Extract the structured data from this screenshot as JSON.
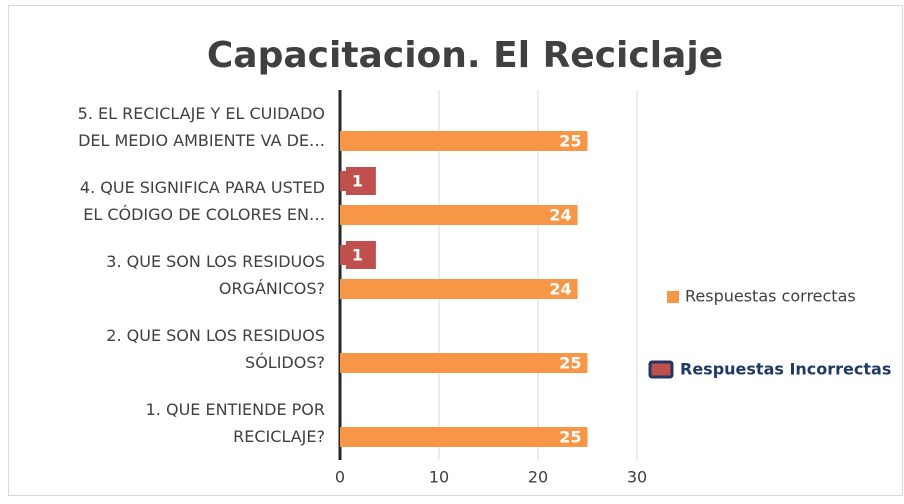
{
  "chart_data": {
    "type": "hbar",
    "title": "Capacitacion. El Reciclaje",
    "categories": [
      "1. QUE ENTIENDE POR\nRECICLAJE?",
      "2. QUE SON LOS RESIDUOS\nSÓLIDOS?",
      "3. QUE SON LOS RESIDUOS\nORGÁNICOS?",
      "4. QUE SIGNIFICA PARA USTED\nEL CÓDIGO DE COLORES EN…",
      "5. EL RECICLAJE Y EL CUIDADO\nDEL MEDIO AMBIENTE VA DE…"
    ],
    "series": [
      {
        "name": "Respuestas correctas",
        "color": "#f79646",
        "values": [
          25,
          25,
          24,
          24,
          25
        ]
      },
      {
        "name": "Respuestas Incorrectas",
        "color": "#c0504d",
        "values": [
          null,
          null,
          1,
          1,
          null
        ]
      }
    ],
    "xlim": [
      0,
      30
    ],
    "xticks": [
      0,
      10,
      20,
      30
    ],
    "grid": true
  }
}
